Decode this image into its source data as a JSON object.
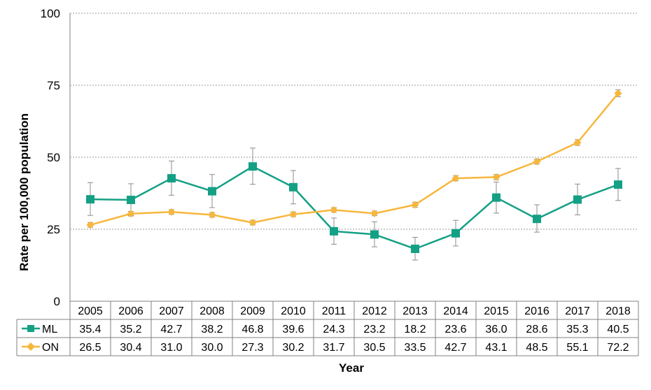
{
  "chart_data": {
    "type": "line",
    "title": "",
    "xlabel": "Year",
    "ylabel": "Rate per 100,000 population",
    "ylim": [
      0,
      100
    ],
    "yticks": [
      "0",
      "25",
      "50",
      "75",
      "100"
    ],
    "grid": "horizontal dashed",
    "legend": "data table below x-axis",
    "categories": [
      "2005",
      "2006",
      "2007",
      "2008",
      "2009",
      "2010",
      "2011",
      "2012",
      "2013",
      "2014",
      "2015",
      "2016",
      "2017",
      "2018"
    ],
    "series": [
      {
        "name": "ML",
        "color": "#14a085",
        "marker": "square",
        "values": [
          35.4,
          35.2,
          42.7,
          38.2,
          46.8,
          39.6,
          24.3,
          23.2,
          18.2,
          23.6,
          36.0,
          28.6,
          35.3,
          40.5
        ],
        "labels": [
          "35.4",
          "35.2",
          "42.7",
          "38.2",
          "46.8",
          "39.6",
          "24.3",
          "23.2",
          "18.2",
          "23.6",
          "36.0",
          "28.6",
          "35.3",
          "40.5"
        ],
        "ci_low": [
          29.8,
          29.8,
          36.8,
          32.5,
          40.6,
          33.8,
          19.8,
          18.9,
          14.3,
          19.2,
          30.6,
          24.0,
          30.0,
          35.0
        ],
        "ci_high": [
          41.2,
          40.8,
          48.7,
          44.0,
          53.2,
          45.4,
          28.9,
          27.6,
          22.2,
          28.1,
          41.4,
          33.5,
          40.7,
          46.1
        ]
      },
      {
        "name": "ON",
        "color": "#f7b73c",
        "marker": "diamond",
        "values": [
          26.5,
          30.4,
          31.0,
          30.0,
          27.3,
          30.2,
          31.7,
          30.5,
          33.5,
          42.7,
          43.1,
          48.5,
          55.1,
          72.2
        ],
        "labels": [
          "26.5",
          "30.4",
          "31.0",
          "30.0",
          "27.3",
          "30.2",
          "31.7",
          "30.5",
          "33.5",
          "42.7",
          "43.1",
          "48.5",
          "55.1",
          "72.2"
        ],
        "ci_low": [
          25.7,
          29.6,
          30.2,
          29.2,
          26.5,
          29.4,
          30.9,
          29.7,
          32.6,
          41.8,
          42.2,
          47.6,
          54.1,
          71.0
        ],
        "ci_high": [
          27.3,
          31.2,
          31.8,
          30.8,
          28.1,
          31.0,
          32.5,
          31.3,
          34.4,
          43.6,
          44.0,
          49.4,
          56.1,
          73.4
        ]
      }
    ]
  }
}
